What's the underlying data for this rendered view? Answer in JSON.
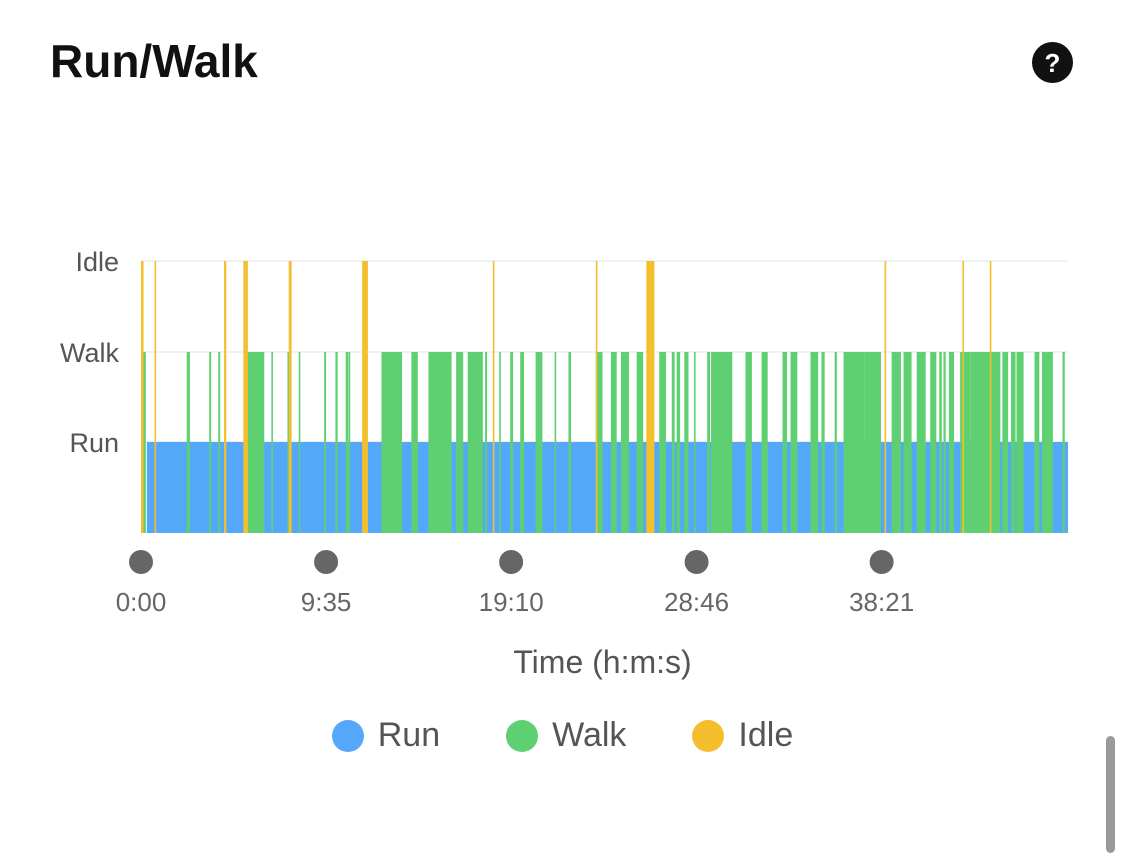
{
  "header": {
    "title": "Run/Walk",
    "help_icon": "question-circle-icon",
    "help_label": "?"
  },
  "chart_data": {
    "type": "bar",
    "x_unit": "seconds",
    "xlabel": "Time (h:m:s)",
    "y_levels": [
      "Run",
      "Walk",
      "Idle"
    ],
    "x_ticks": [
      {
        "value": 0,
        "label": "0:00"
      },
      {
        "value": 575,
        "label": "9:35"
      },
      {
        "value": 1150,
        "label": "19:10"
      },
      {
        "value": 1726,
        "label": "28:46"
      },
      {
        "value": 2301,
        "label": "38:21"
      }
    ],
    "x_range": [
      0,
      2880
    ],
    "colors": {
      "Run": "#55A7FA",
      "Walk": "#5FD072",
      "Idle": "#F4BF2D"
    },
    "base_series": {
      "state": "Run",
      "start": 18,
      "end": 2880
    },
    "walk_segments": [
      [
        6,
        15
      ],
      [
        142,
        152
      ],
      [
        212,
        218
      ],
      [
        240,
        246
      ],
      [
        330,
        383
      ],
      [
        405,
        408
      ],
      [
        455,
        461
      ],
      [
        490,
        495
      ],
      [
        569,
        575
      ],
      [
        604,
        611
      ],
      [
        636,
        643
      ],
      [
        645,
        650
      ],
      [
        639,
        644
      ],
      [
        747,
        811
      ],
      [
        840,
        860
      ],
      [
        893,
        965
      ],
      [
        979,
        1001
      ],
      [
        1015,
        1062
      ],
      [
        1069,
        1075
      ],
      [
        1113,
        1118
      ],
      [
        1147,
        1156
      ],
      [
        1178,
        1190
      ],
      [
        1226,
        1247
      ],
      [
        1285,
        1290
      ],
      [
        1328,
        1336
      ],
      [
        1413,
        1434
      ],
      [
        1460,
        1478
      ],
      [
        1491,
        1516
      ],
      [
        1540,
        1560
      ],
      [
        1574,
        1589
      ],
      [
        1610,
        1631
      ],
      [
        1649,
        1658
      ],
      [
        1664,
        1675
      ],
      [
        1688,
        1701
      ],
      [
        1719,
        1718
      ],
      [
        1759,
        1768
      ],
      [
        1771,
        1837
      ],
      [
        1878,
        1898
      ],
      [
        1928,
        1947
      ],
      [
        1993,
        2007
      ],
      [
        2018,
        2039
      ],
      [
        2080,
        2104
      ],
      [
        2114,
        2124
      ],
      [
        2155,
        2162
      ],
      [
        2183,
        2183
      ],
      [
        2183,
        2249
      ],
      [
        2249,
        2295
      ],
      [
        2293,
        2299
      ],
      [
        2332,
        2361
      ],
      [
        2369,
        2394
      ],
      [
        2410,
        2438
      ],
      [
        2452,
        2471
      ],
      [
        2480,
        2488
      ],
      [
        2493,
        2500
      ],
      [
        2510,
        2520
      ],
      [
        2513,
        2526
      ],
      [
        2545,
        2578
      ],
      [
        2578,
        2666
      ],
      [
        2655,
        2662
      ],
      [
        2665,
        2670
      ],
      [
        2676,
        2694
      ],
      [
        2703,
        2717
      ],
      [
        2720,
        2742
      ],
      [
        2776,
        2791
      ],
      [
        2799,
        2833
      ],
      [
        2863,
        2870
      ]
    ],
    "idle_segments": [
      [
        0,
        8
      ],
      [
        42,
        45
      ],
      [
        258,
        265
      ],
      [
        318,
        332
      ],
      [
        459,
        468
      ],
      [
        687,
        705
      ],
      [
        1093,
        1096
      ],
      [
        1413,
        1416
      ],
      [
        1570,
        1595
      ],
      [
        2310,
        2313
      ],
      [
        2552,
        2556
      ],
      [
        2637,
        2640
      ]
    ]
  },
  "legend": [
    {
      "label": "Run",
      "color": "#55A7FA"
    },
    {
      "label": "Walk",
      "color": "#5FD072"
    },
    {
      "label": "Idle",
      "color": "#F4BF2D"
    }
  ]
}
